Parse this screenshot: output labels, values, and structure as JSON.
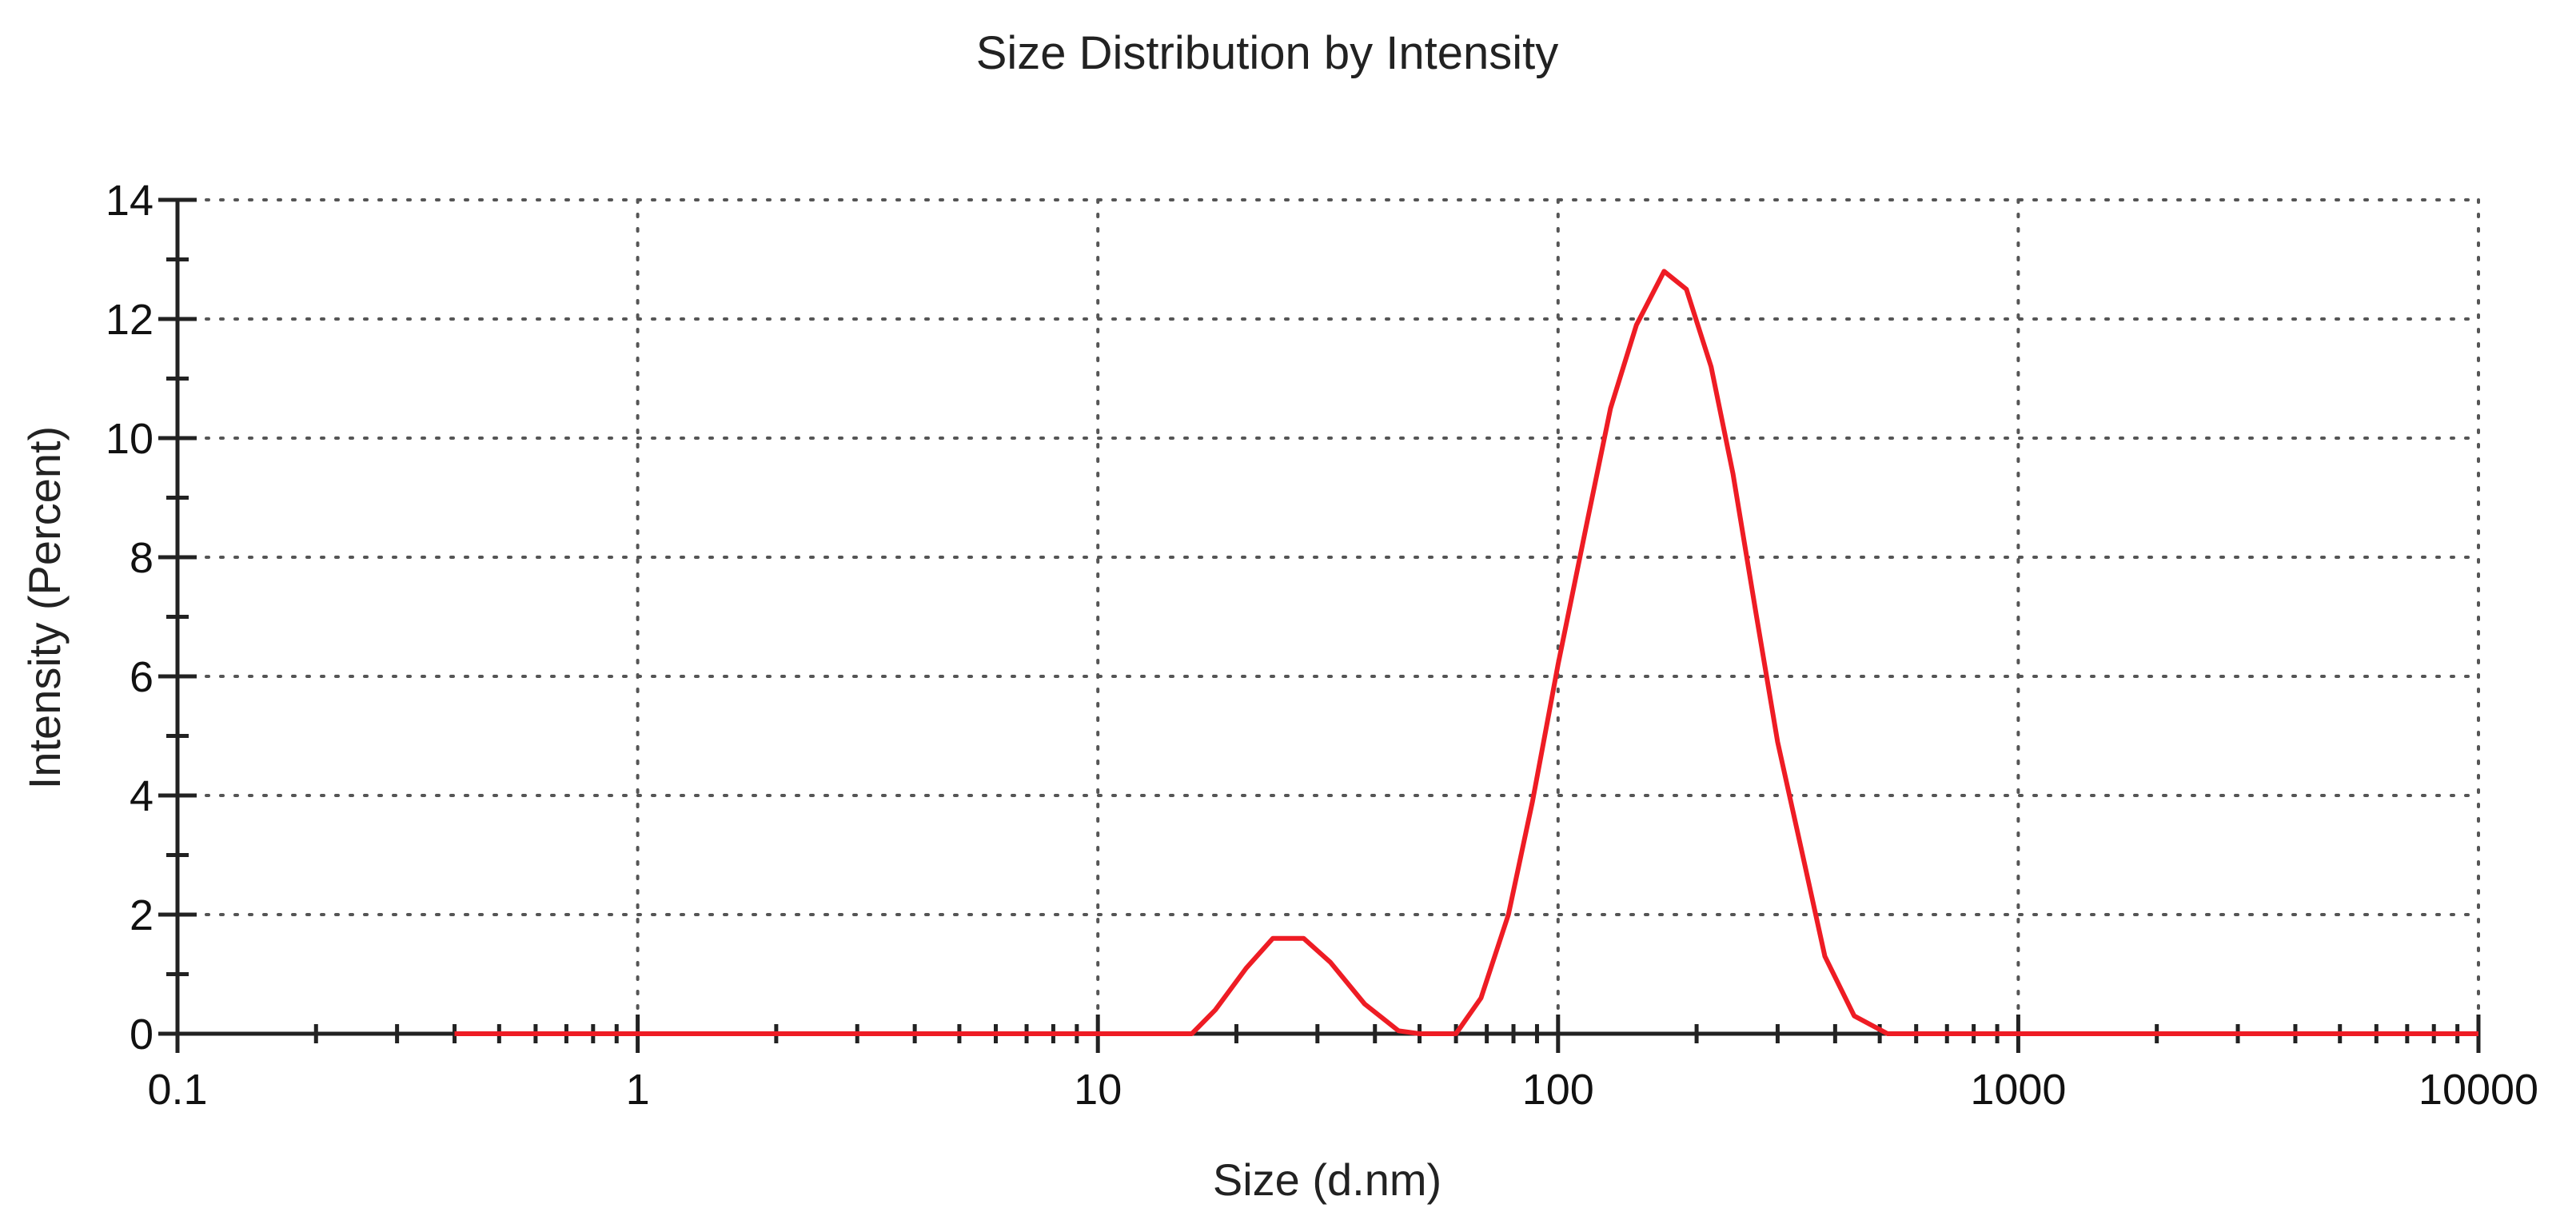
{
  "chart_data": {
    "type": "line",
    "title": "Size Distribution by Intensity",
    "xlabel": "Size (d.nm)",
    "ylabel": "Intensity (Percent)",
    "x_scale": "log",
    "xlim": [
      0.1,
      10000
    ],
    "ylim": [
      0,
      14
    ],
    "x_ticks": [
      0.1,
      1,
      10,
      100,
      1000,
      10000
    ],
    "x_tick_labels": [
      "0.1",
      "1",
      "10",
      "100",
      "1000",
      "10000"
    ],
    "y_ticks": [
      0,
      2,
      4,
      6,
      8,
      10,
      12,
      14
    ],
    "y_tick_labels": [
      "0",
      "2",
      "4",
      "6",
      "8",
      "10",
      "12",
      "14"
    ],
    "grid": true,
    "colors": {
      "series": "#ee1c24",
      "axis": "#222222",
      "grid": "#555555"
    },
    "series": [
      {
        "points": [
          [
            0.4,
            0
          ],
          [
            1,
            0
          ],
          [
            3,
            0
          ],
          [
            10,
            0
          ],
          [
            16,
            0
          ],
          [
            18,
            0.4
          ],
          [
            21,
            1.1
          ],
          [
            24,
            1.6
          ],
          [
            28,
            1.6
          ],
          [
            32,
            1.2
          ],
          [
            38,
            0.5
          ],
          [
            45,
            0.05
          ],
          [
            50,
            0
          ],
          [
            60,
            0
          ],
          [
            68,
            0.6
          ],
          [
            78,
            2.0
          ],
          [
            88,
            3.9
          ],
          [
            100,
            6.2
          ],
          [
            115,
            8.5
          ],
          [
            130,
            10.5
          ],
          [
            148,
            11.9
          ],
          [
            170,
            12.8
          ],
          [
            190,
            12.5
          ],
          [
            215,
            11.2
          ],
          [
            240,
            9.4
          ],
          [
            270,
            7.0
          ],
          [
            300,
            4.9
          ],
          [
            340,
            3.0
          ],
          [
            380,
            1.3
          ],
          [
            440,
            0.3
          ],
          [
            520,
            0
          ],
          [
            1000,
            0
          ],
          [
            5000,
            0
          ],
          [
            10000,
            0
          ]
        ]
      }
    ]
  }
}
